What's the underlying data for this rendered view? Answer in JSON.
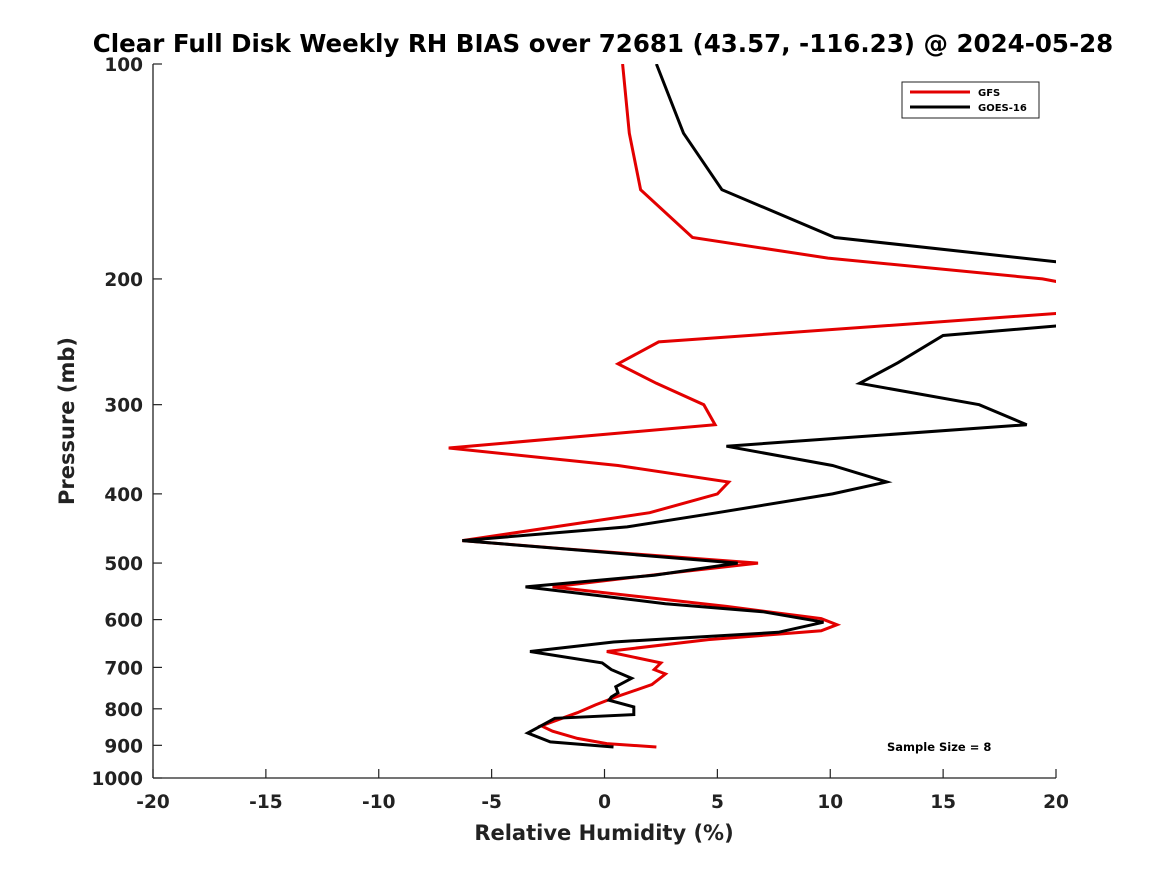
{
  "chart_data": {
    "type": "line",
    "title": "Clear Full Disk Weekly RH BIAS over 72681 (43.57, -116.23) @ 2024-05-28",
    "xlabel": "Relative Humidity (%)",
    "ylabel": "Pressure (mb)",
    "xlim": [
      -20,
      20
    ],
    "ylim": [
      100,
      1000
    ],
    "y_scale": "log",
    "y_reversed": true,
    "x_ticks": [
      -20,
      -15,
      -10,
      -5,
      0,
      5,
      10,
      15,
      20
    ],
    "y_ticks": [
      100,
      200,
      300,
      400,
      500,
      600,
      700,
      800,
      900,
      1000
    ],
    "grid": false,
    "legend_position": "top-right",
    "annotation": "Sample Size = 8",
    "series": [
      {
        "name": "GFS",
        "color": "#e30000",
        "points": [
          {
            "x": 0.8,
            "y": 100
          },
          {
            "x": 1.1,
            "y": 125
          },
          {
            "x": 1.6,
            "y": 150
          },
          {
            "x": 3.9,
            "y": 175
          },
          {
            "x": 9.9,
            "y": 187
          },
          {
            "x": 19.4,
            "y": 200
          },
          {
            "x": 20.5,
            "y": 203
          },
          {
            "x": 20.5,
            "y": 223
          },
          {
            "x": 2.4,
            "y": 245
          },
          {
            "x": 0.6,
            "y": 263
          },
          {
            "x": 2.3,
            "y": 280
          },
          {
            "x": 4.4,
            "y": 300
          },
          {
            "x": 4.9,
            "y": 320
          },
          {
            "x": -6.9,
            "y": 345
          },
          {
            "x": 0.6,
            "y": 365
          },
          {
            "x": 5.5,
            "y": 385
          },
          {
            "x": 5.0,
            "y": 400
          },
          {
            "x": 2.0,
            "y": 425
          },
          {
            "x": -6.3,
            "y": 465
          },
          {
            "x": -1.6,
            "y": 478
          },
          {
            "x": 6.8,
            "y": 500
          },
          {
            "x": 3.2,
            "y": 515
          },
          {
            "x": -2.3,
            "y": 540
          },
          {
            "x": 5.4,
            "y": 575
          },
          {
            "x": 9.6,
            "y": 598
          },
          {
            "x": 10.3,
            "y": 610
          },
          {
            "x": 9.6,
            "y": 622
          },
          {
            "x": 4.6,
            "y": 640
          },
          {
            "x": 0.1,
            "y": 665
          },
          {
            "x": 2.5,
            "y": 690
          },
          {
            "x": 2.2,
            "y": 705
          },
          {
            "x": 2.7,
            "y": 715
          },
          {
            "x": 2.1,
            "y": 740
          },
          {
            "x": 0.5,
            "y": 770
          },
          {
            "x": -0.4,
            "y": 790
          },
          {
            "x": -1.2,
            "y": 810
          },
          {
            "x": -2.8,
            "y": 845
          },
          {
            "x": -2.3,
            "y": 860
          },
          {
            "x": -1.2,
            "y": 880
          },
          {
            "x": 0.1,
            "y": 895
          },
          {
            "x": 2.3,
            "y": 905
          }
        ]
      },
      {
        "name": "GOES-16",
        "color": "#000000",
        "points": [
          {
            "x": 2.3,
            "y": 100
          },
          {
            "x": 3.5,
            "y": 125
          },
          {
            "x": 5.2,
            "y": 150
          },
          {
            "x": 10.2,
            "y": 175
          },
          {
            "x": 20.5,
            "y": 190
          },
          {
            "x": 20.5,
            "y": 232
          },
          {
            "x": 15.0,
            "y": 240
          },
          {
            "x": 13.0,
            "y": 262
          },
          {
            "x": 11.3,
            "y": 280
          },
          {
            "x": 16.6,
            "y": 300
          },
          {
            "x": 18.7,
            "y": 320
          },
          {
            "x": 5.4,
            "y": 343
          },
          {
            "x": 10.1,
            "y": 365
          },
          {
            "x": 12.5,
            "y": 385
          },
          {
            "x": 10.1,
            "y": 400
          },
          {
            "x": 5.0,
            "y": 425
          },
          {
            "x": 1.0,
            "y": 445
          },
          {
            "x": -6.3,
            "y": 465
          },
          {
            "x": 5.9,
            "y": 500
          },
          {
            "x": 2.2,
            "y": 520
          },
          {
            "x": -3.5,
            "y": 540
          },
          {
            "x": 2.7,
            "y": 570
          },
          {
            "x": 7.0,
            "y": 585
          },
          {
            "x": 9.7,
            "y": 605
          },
          {
            "x": 7.7,
            "y": 625
          },
          {
            "x": 0.4,
            "y": 645
          },
          {
            "x": -3.3,
            "y": 665
          },
          {
            "x": -0.1,
            "y": 690
          },
          {
            "x": 0.3,
            "y": 705
          },
          {
            "x": 1.2,
            "y": 725
          },
          {
            "x": 0.5,
            "y": 745
          },
          {
            "x": 0.6,
            "y": 760
          },
          {
            "x": 0.3,
            "y": 770
          },
          {
            "x": 0.2,
            "y": 778
          },
          {
            "x": 1.3,
            "y": 795
          },
          {
            "x": 1.3,
            "y": 815
          },
          {
            "x": -2.2,
            "y": 825
          },
          {
            "x": -2.9,
            "y": 848
          },
          {
            "x": -3.4,
            "y": 865
          },
          {
            "x": -2.4,
            "y": 890
          },
          {
            "x": 0.4,
            "y": 905
          }
        ]
      }
    ]
  }
}
